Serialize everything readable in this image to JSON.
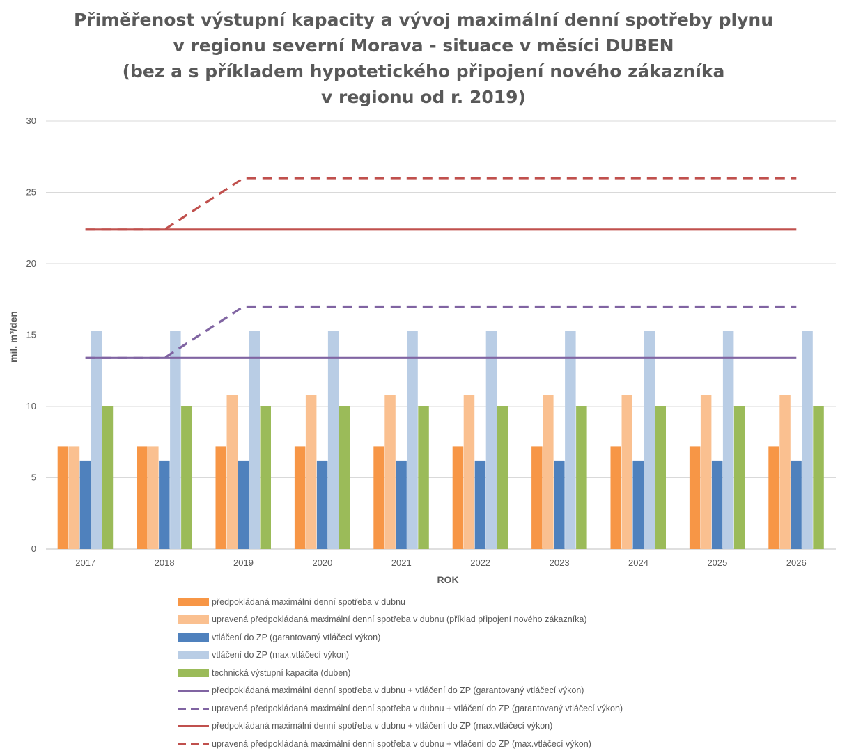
{
  "title_lines": [
    "Přiměřenost výstupní kapacity a vývoj maximální denní spotřeby plynu",
    "v regionu severní Morava - situace v měsíci DUBEN",
    "(bez a s příkladem hypotetického připojení nového zákazníka",
    "v regionu od r. 2019)"
  ],
  "chart_data": {
    "type": "bar",
    "title": "Přiměřenost výstupní kapacity a vývoj maximální denní spotřeby plynu v regionu severní Morava - situace v měsíci DUBEN (bez a s příkladem hypotetického připojení nového zákazníka v regionu od r. 2019)",
    "xlabel": "ROK",
    "ylabel": "mil. m³/den",
    "ylim": [
      0,
      30
    ],
    "yticks": [
      "0",
      "5",
      "10",
      "15",
      "20",
      "25",
      "30"
    ],
    "categories": [
      "2017",
      "2018",
      "2019",
      "2020",
      "2021",
      "2022",
      "2023",
      "2024",
      "2025",
      "2026"
    ],
    "grid": true,
    "legend_position": "bottom",
    "series": [
      {
        "name": "předpokládaná maximální denní spotřeba v dubnu",
        "kind": "bar",
        "color": "#f79646",
        "values": [
          7.2,
          7.2,
          7.2,
          7.2,
          7.2,
          7.2,
          7.2,
          7.2,
          7.2,
          7.2
        ]
      },
      {
        "name": "upravená předpokládaná maximální denní spotřeba v dubnu (příklad připojení nového zákazníka)",
        "kind": "bar",
        "color": "#fac090",
        "values": [
          7.2,
          7.2,
          10.8,
          10.8,
          10.8,
          10.8,
          10.8,
          10.8,
          10.8,
          10.8
        ]
      },
      {
        "name": "vtláčení do ZP (garantovaný vtláčecí výkon)",
        "kind": "bar",
        "color": "#4f81bd",
        "values": [
          6.2,
          6.2,
          6.2,
          6.2,
          6.2,
          6.2,
          6.2,
          6.2,
          6.2,
          6.2
        ]
      },
      {
        "name": "vtláčení do ZP (max.vtláčecí výkon)",
        "kind": "bar",
        "color": "#b9cde5",
        "values": [
          15.3,
          15.3,
          15.3,
          15.3,
          15.3,
          15.3,
          15.3,
          15.3,
          15.3,
          15.3
        ]
      },
      {
        "name": "technická výstupní kapacita (duben)",
        "kind": "bar",
        "color": "#9bbb59",
        "values": [
          10,
          10,
          10,
          10,
          10,
          10,
          10,
          10,
          10,
          10
        ]
      },
      {
        "name": "předpokládaná maximální denní spotřeba v dubnu + vtláčení do ZP (garantovaný vtláčecí výkon)",
        "kind": "line",
        "dash": false,
        "color": "#8064a2",
        "values": [
          13.4,
          13.4,
          13.4,
          13.4,
          13.4,
          13.4,
          13.4,
          13.4,
          13.4,
          13.4
        ]
      },
      {
        "name": "upravená předpokládaná maximální denní spotřeba v dubnu + vtláčení do ZP (garantovaný vtláčecí výkon)",
        "kind": "line",
        "dash": true,
        "color": "#8064a2",
        "values": [
          13.4,
          13.4,
          17.0,
          17.0,
          17.0,
          17.0,
          17.0,
          17.0,
          17.0,
          17.0
        ]
      },
      {
        "name": "předpokládaná maximální denní spotřeba v dubnu + vtláčení do ZP (max.vtláčecí výkon)",
        "kind": "line",
        "dash": false,
        "color": "#c0504d",
        "values": [
          22.4,
          22.4,
          22.4,
          22.4,
          22.4,
          22.4,
          22.4,
          22.4,
          22.4,
          22.4
        ]
      },
      {
        "name": "upravená předpokládaná maximální denní spotřeba v dubnu + vtláčení do ZP (max.vtláčecí výkon)",
        "kind": "line",
        "dash": true,
        "color": "#c0504d",
        "values": [
          22.4,
          22.4,
          26.0,
          26.0,
          26.0,
          26.0,
          26.0,
          26.0,
          26.0,
          26.0
        ]
      }
    ]
  }
}
